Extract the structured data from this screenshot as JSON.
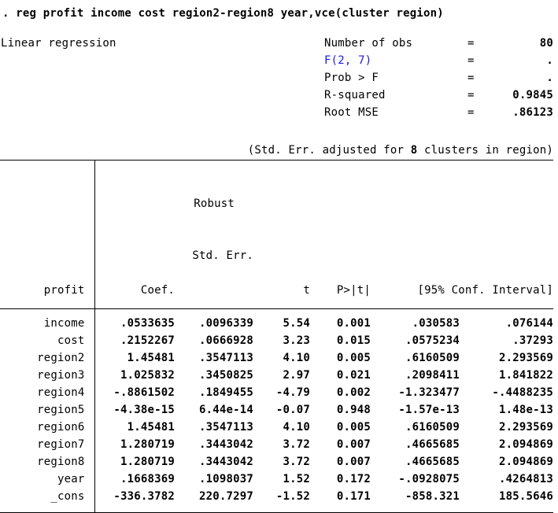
{
  "colors": {
    "text": "#000000",
    "background": "#ffffff",
    "link_blue": "#1a1ae6"
  },
  "command": ". reg profit income cost region2-region8 year,vce(cluster region)",
  "model_title": "Linear regression",
  "stats": {
    "eq": "=",
    "rows": [
      {
        "label": "Number of obs",
        "value": "80",
        "link": false
      },
      {
        "label": "F(2, 7)",
        "value": ".",
        "link": true
      },
      {
        "label": "Prob > F",
        "value": ".",
        "link": false
      },
      {
        "label": "R-squared",
        "value": "0.9845",
        "link": false
      },
      {
        "label": "Root MSE",
        "value": ".86123",
        "link": false
      }
    ]
  },
  "note": {
    "prefix": "(Std. Err. adjusted for ",
    "bold": "8",
    "suffix": " clusters in region)"
  },
  "table": {
    "header": {
      "depvar": "profit",
      "coef": "Coef.",
      "robust_line1": "Robust",
      "robust_line2": "Std. Err.",
      "t": "t",
      "p": "P>|t|",
      "ci": "[95% Conf. Interval]"
    },
    "rows": [
      {
        "var": "income",
        "coef": ".0533635",
        "std_err": ".0096339",
        "t": "5.54",
        "p": "0.001",
        "ci_low": ".030583",
        "ci_high": ".076144"
      },
      {
        "var": "cost",
        "coef": ".2152267",
        "std_err": ".0666928",
        "t": "3.23",
        "p": "0.015",
        "ci_low": ".0575234",
        "ci_high": ".37293"
      },
      {
        "var": "region2",
        "coef": "1.45481",
        "std_err": ".3547113",
        "t": "4.10",
        "p": "0.005",
        "ci_low": ".6160509",
        "ci_high": "2.293569"
      },
      {
        "var": "region3",
        "coef": "1.025832",
        "std_err": ".3450825",
        "t": "2.97",
        "p": "0.021",
        "ci_low": ".2098411",
        "ci_high": "1.841822"
      },
      {
        "var": "region4",
        "coef": "-.8861502",
        "std_err": ".1849455",
        "t": "-4.79",
        "p": "0.002",
        "ci_low": "-1.323477",
        "ci_high": "-.4488235"
      },
      {
        "var": "region5",
        "coef": "-4.38e-15",
        "std_err": "6.44e-14",
        "t": "-0.07",
        "p": "0.948",
        "ci_low": "-1.57e-13",
        "ci_high": "1.48e-13"
      },
      {
        "var": "region6",
        "coef": "1.45481",
        "std_err": ".3547113",
        "t": "4.10",
        "p": "0.005",
        "ci_low": ".6160509",
        "ci_high": "2.293569"
      },
      {
        "var": "region7",
        "coef": "1.280719",
        "std_err": ".3443042",
        "t": "3.72",
        "p": "0.007",
        "ci_low": ".4665685",
        "ci_high": "2.094869"
      },
      {
        "var": "region8",
        "coef": "1.280719",
        "std_err": ".3443042",
        "t": "3.72",
        "p": "0.007",
        "ci_low": ".4665685",
        "ci_high": "2.094869"
      },
      {
        "var": "year",
        "coef": ".1668369",
        "std_err": ".1098037",
        "t": "1.52",
        "p": "0.172",
        "ci_low": "-.0928075",
        "ci_high": ".4264813"
      },
      {
        "var": "_cons",
        "coef": "-336.3782",
        "std_err": "220.7297",
        "t": "-1.52",
        "p": "0.171",
        "ci_low": "-858.321",
        "ci_high": "185.5646"
      }
    ]
  }
}
